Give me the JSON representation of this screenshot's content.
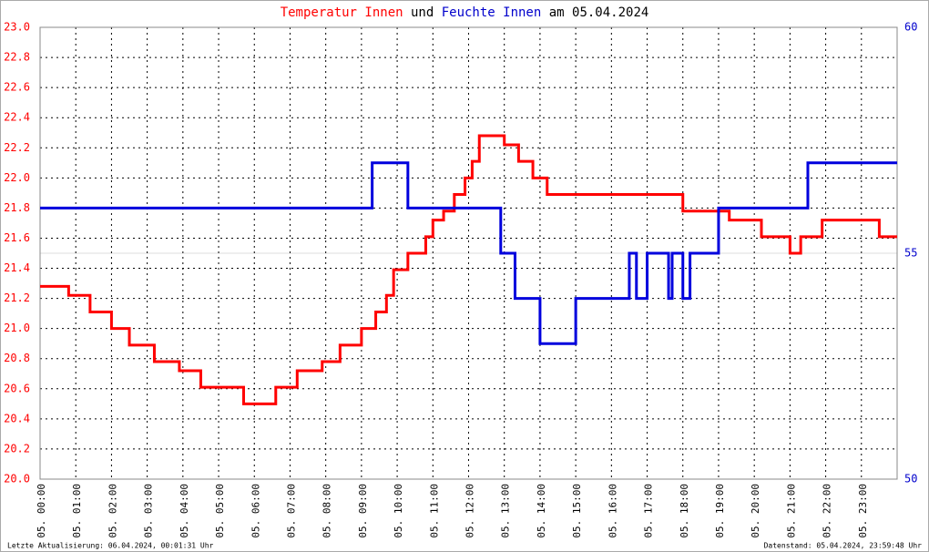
{
  "chart_data": {
    "type": "line",
    "title_parts": [
      {
        "text": "Temperatur Innen",
        "color": "#ff0000"
      },
      {
        "text": "und",
        "color": "#000000"
      },
      {
        "text": "Feuchte Innen",
        "color": "#0000cc"
      },
      {
        "text": "am 05.04.2024",
        "color": "#000000"
      }
    ],
    "footer_left": "Letzte Aktualisierung: 06.04.2024, 00:01:31 Uhr",
    "footer_right": "Datenstand: 05.04.2024, 23:59:48 Uhr",
    "xlim": [
      0,
      24
    ],
    "xticks": [
      {
        "value": 0,
        "label": "05. 00:00"
      },
      {
        "value": 1,
        "label": "05. 01:00"
      },
      {
        "value": 2,
        "label": "05. 02:00"
      },
      {
        "value": 3,
        "label": "05. 03:00"
      },
      {
        "value": 4,
        "label": "05. 04:00"
      },
      {
        "value": 5,
        "label": "05. 05:00"
      },
      {
        "value": 6,
        "label": "05. 06:00"
      },
      {
        "value": 7,
        "label": "05. 07:00"
      },
      {
        "value": 8,
        "label": "05. 08:00"
      },
      {
        "value": 9,
        "label": "05. 09:00"
      },
      {
        "value": 10,
        "label": "05. 10:00"
      },
      {
        "value": 11,
        "label": "05. 11:00"
      },
      {
        "value": 12,
        "label": "05. 12:00"
      },
      {
        "value": 13,
        "label": "05. 13:00"
      },
      {
        "value": 14,
        "label": "05. 14:00"
      },
      {
        "value": 15,
        "label": "05. 15:00"
      },
      {
        "value": 16,
        "label": "05. 16:00"
      },
      {
        "value": 17,
        "label": "05. 17:00"
      },
      {
        "value": 18,
        "label": "05. 18:00"
      },
      {
        "value": 19,
        "label": "05. 19:00"
      },
      {
        "value": 20,
        "label": "05. 20:00"
      },
      {
        "value": 21,
        "label": "05. 21:00"
      },
      {
        "value": 22,
        "label": "05. 22:00"
      },
      {
        "value": 23,
        "label": "05. 23:00"
      }
    ],
    "ylim": [
      20.0,
      23.0
    ],
    "yticks": [
      {
        "value": 20.0,
        "label": "20.0"
      },
      {
        "value": 20.2,
        "label": "20.2"
      },
      {
        "value": 20.4,
        "label": "20.4"
      },
      {
        "value": 20.6,
        "label": "20.6"
      },
      {
        "value": 20.8,
        "label": "20.8"
      },
      {
        "value": 21.0,
        "label": "21.0"
      },
      {
        "value": 21.2,
        "label": "21.2"
      },
      {
        "value": 21.4,
        "label": "21.4"
      },
      {
        "value": 21.6,
        "label": "21.6"
      },
      {
        "value": 21.8,
        "label": "21.8"
      },
      {
        "value": 22.0,
        "label": "22.0"
      },
      {
        "value": 22.2,
        "label": "22.2"
      },
      {
        "value": 22.4,
        "label": "22.4"
      },
      {
        "value": 22.6,
        "label": "22.6"
      },
      {
        "value": 22.8,
        "label": "22.8"
      },
      {
        "value": 23.0,
        "label": "23.0"
      }
    ],
    "y2lim": [
      50,
      60
    ],
    "y2ticks": [
      50,
      55,
      60
    ],
    "grid": true,
    "series": [
      {
        "name": "Temperatur Innen",
        "color": "#ff0000",
        "axis": "y",
        "x": [
          0,
          0.8,
          0.8,
          1.4,
          1.4,
          2.0,
          2.0,
          2.5,
          2.5,
          3.2,
          3.2,
          3.9,
          3.9,
          4.5,
          4.5,
          5.7,
          5.7,
          6.6,
          6.6,
          7.2,
          7.2,
          7.9,
          7.9,
          8.4,
          8.4,
          9.0,
          9.0,
          9.4,
          9.4,
          9.7,
          9.7,
          9.9,
          9.9,
          10.3,
          10.3,
          10.8,
          10.8,
          11.0,
          11.0,
          11.3,
          11.3,
          11.6,
          11.6,
          11.9,
          11.9,
          12.1,
          12.1,
          12.3,
          12.3,
          13.0,
          13.0,
          13.4,
          13.4,
          13.8,
          13.8,
          14.2,
          14.2,
          18.0,
          18.0,
          19.3,
          19.3,
          20.2,
          20.2,
          21.0,
          21.0,
          21.3,
          21.3,
          21.9,
          21.9,
          23.5,
          23.5,
          24
        ],
        "values": [
          21.28,
          21.28,
          21.22,
          21.22,
          21.11,
          21.11,
          21.0,
          21.0,
          20.89,
          20.89,
          20.78,
          20.78,
          20.72,
          20.72,
          20.61,
          20.61,
          20.5,
          20.5,
          20.61,
          20.61,
          20.72,
          20.72,
          20.78,
          20.78,
          20.89,
          20.89,
          21.0,
          21.0,
          21.11,
          21.11,
          21.22,
          21.22,
          21.39,
          21.39,
          21.5,
          21.5,
          21.61,
          21.61,
          21.72,
          21.72,
          21.78,
          21.78,
          21.89,
          21.89,
          22.0,
          22.0,
          22.11,
          22.11,
          22.28,
          22.28,
          22.22,
          22.22,
          22.11,
          22.11,
          22.0,
          22.0,
          21.89,
          21.89,
          21.78,
          21.78,
          21.72,
          21.72,
          21.61,
          21.61,
          21.5,
          21.5,
          21.61,
          21.61,
          21.72,
          21.72,
          21.61,
          21.61
        ]
      },
      {
        "name": "Feuchte Innen",
        "color": "#0000dd",
        "axis": "y2",
        "x": [
          0,
          9.3,
          9.3,
          10.3,
          10.3,
          12.9,
          12.9,
          13.3,
          13.3,
          14.0,
          14.0,
          15.0,
          15.0,
          16.5,
          16.5,
          16.7,
          16.7,
          17.0,
          17.0,
          17.6,
          17.6,
          17.7,
          17.7,
          18.0,
          18.0,
          18.2,
          18.2,
          19.0,
          19.0,
          21.5,
          21.5,
          24
        ],
        "values": [
          56,
          56,
          57,
          57,
          56,
          56,
          55,
          55,
          54,
          54,
          53,
          53,
          54,
          54,
          55,
          55,
          54,
          54,
          55,
          55,
          54,
          54,
          55,
          55,
          54,
          54,
          55,
          55,
          56,
          56,
          57,
          57
        ]
      }
    ]
  }
}
